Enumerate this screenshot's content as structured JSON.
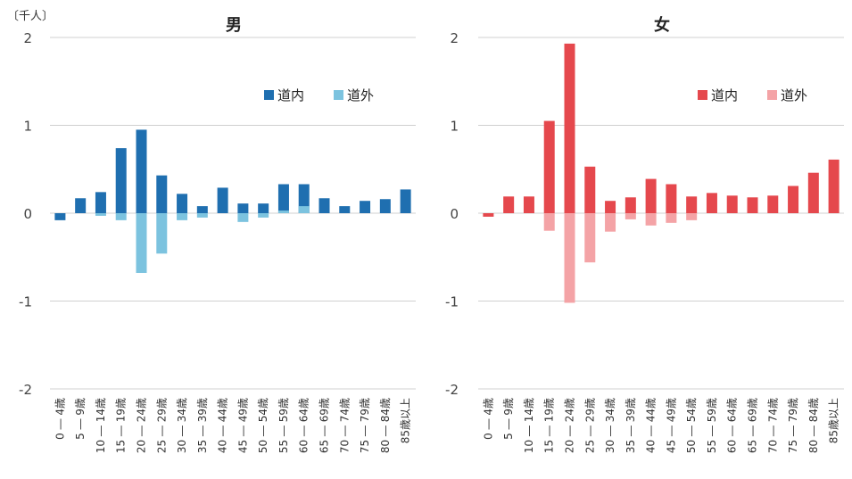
{
  "unit_label": "〔千人〕",
  "chart_data": [
    {
      "type": "bar",
      "title": "男",
      "ylim": [
        -2,
        2
      ],
      "yticks": [
        "2",
        "1",
        "0",
        "-1",
        "-2"
      ],
      "grid": true,
      "legend_position": "top-right",
      "categories": [
        "0 ― 4歳",
        "5 ― 9歳",
        "10 ― 14歳",
        "15 ― 19歳",
        "20 ― 24歳",
        "25 ― 29歳",
        "30 ― 34歳",
        "35 ― 39歳",
        "40 ― 44歳",
        "45 ― 49歳",
        "50 ― 54歳",
        "55 ― 59歳",
        "60 ― 64歳",
        "65 ― 69歳",
        "70 ― 74歳",
        "75 ― 79歳",
        "80 ― 84歳",
        "85歳以上"
      ],
      "series": [
        {
          "name": "道内",
          "color": "#1f6fb0",
          "values": [
            -0.08,
            0.17,
            0.24,
            0.74,
            0.95,
            0.43,
            0.22,
            0.08,
            0.29,
            0.11,
            0.11,
            0.33,
            0.33,
            0.17,
            0.08,
            0.14,
            0.16,
            0.27
          ]
        },
        {
          "name": "道外",
          "color": "#7cc3df",
          "values": [
            0.0,
            0.0,
            -0.03,
            -0.08,
            -0.68,
            -0.46,
            -0.08,
            -0.05,
            0.0,
            -0.1,
            -0.05,
            0.03,
            0.08,
            0.0,
            0.0,
            0.0,
            0.0,
            0.0
          ]
        }
      ]
    },
    {
      "type": "bar",
      "title": "女",
      "ylim": [
        -2,
        2
      ],
      "yticks": [
        "2",
        "1",
        "0",
        "-1",
        "-2"
      ],
      "grid": true,
      "legend_position": "top-right",
      "categories": [
        "0 ― 4歳",
        "5 ― 9歳",
        "10 ― 14歳",
        "15 ― 19歳",
        "20 ― 24歳",
        "25 ― 29歳",
        "30 ― 34歳",
        "35 ― 39歳",
        "40 ― 44歳",
        "45 ― 49歳",
        "50 ― 54歳",
        "55 ― 59歳",
        "60 ― 64歳",
        "65 ― 69歳",
        "70 ― 74歳",
        "75 ― 79歳",
        "80 ― 84歳",
        "85歳以上"
      ],
      "series": [
        {
          "name": "道内",
          "color": "#e5484d",
          "values": [
            -0.04,
            0.19,
            0.19,
            1.05,
            1.93,
            0.53,
            0.14,
            0.18,
            0.39,
            0.33,
            0.19,
            0.23,
            0.2,
            0.18,
            0.2,
            0.31,
            0.46,
            0.61
          ]
        },
        {
          "name": "道外",
          "color": "#f4a3a6",
          "values": [
            0.0,
            0.0,
            0.0,
            -0.2,
            -1.02,
            -0.56,
            -0.21,
            -0.07,
            -0.14,
            -0.11,
            -0.08,
            0.0,
            0.0,
            0.0,
            0.0,
            0.0,
            0.0,
            0.0
          ]
        }
      ]
    }
  ]
}
